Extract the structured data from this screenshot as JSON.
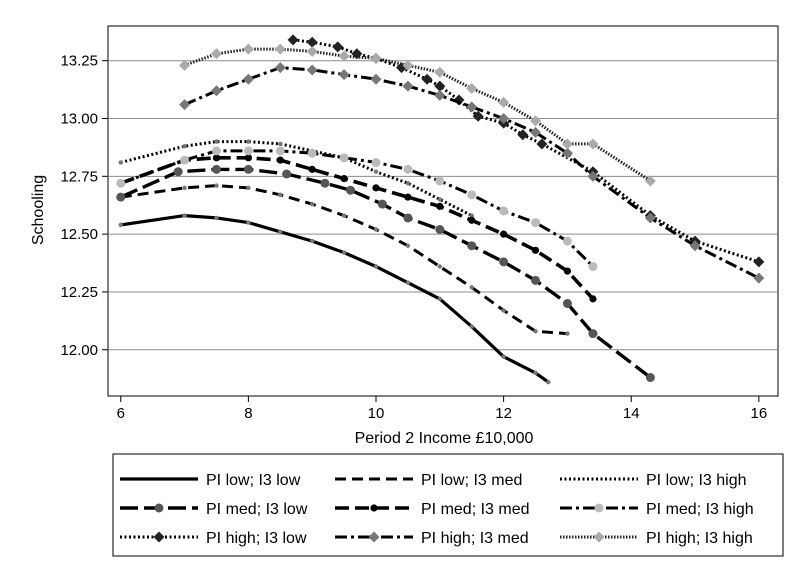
{
  "chart_data": {
    "type": "line",
    "title": "",
    "xlabel": "Period 2 Income £10,000",
    "ylabel": "Schooling",
    "xlim": [
      5.8,
      16.3
    ],
    "ylim": [
      11.8,
      13.4
    ],
    "xticks": [
      6,
      8,
      10,
      12,
      14,
      16
    ],
    "yticks": [
      12.0,
      12.25,
      12.5,
      12.75,
      13.0,
      13.25
    ],
    "ytick_labels": [
      "12.00",
      "12.25",
      "12.50",
      "12.75",
      "13.00",
      "13.25"
    ],
    "grid": "horizontal",
    "legend_placement": "bottom",
    "series": [
      {
        "name": "PI low; I3 low",
        "line": "solid",
        "marker": "none",
        "x": [
          6.0,
          7.0,
          7.5,
          8.0,
          8.5,
          9.0,
          9.5,
          10.0,
          10.5,
          11.0,
          11.5,
          12.0,
          12.5,
          12.7
        ],
        "y": [
          12.54,
          12.58,
          12.57,
          12.55,
          12.51,
          12.47,
          12.42,
          12.36,
          12.29,
          12.22,
          12.1,
          11.97,
          11.9,
          11.86
        ]
      },
      {
        "name": "PI low; I3 med",
        "line": "dash",
        "marker": "none",
        "x": [
          6.0,
          7.0,
          7.5,
          8.0,
          8.5,
          9.0,
          9.5,
          10.0,
          10.5,
          11.0,
          11.5,
          12.0,
          12.5,
          13.0
        ],
        "y": [
          12.66,
          12.7,
          12.71,
          12.7,
          12.67,
          12.63,
          12.58,
          12.52,
          12.45,
          12.36,
          12.27,
          12.17,
          12.08,
          12.07
        ]
      },
      {
        "name": "PI low; I3 high",
        "line": "dot",
        "marker": "none",
        "x": [
          6.0,
          7.0,
          7.5,
          8.0,
          8.5,
          9.0,
          9.5,
          10.0,
          10.5,
          11.0,
          11.5
        ],
        "y": [
          12.81,
          12.88,
          12.9,
          12.9,
          12.89,
          12.86,
          12.83,
          12.77,
          12.72,
          12.65,
          12.58
        ]
      },
      {
        "name": "PI med; I3 low",
        "line": "longdash",
        "marker": "circle",
        "x": [
          6.0,
          6.9,
          7.5,
          8.0,
          8.6,
          9.2,
          9.6,
          10.1,
          10.5,
          11.0,
          11.5,
          12.0,
          12.5,
          13.0,
          13.4,
          14.3
        ],
        "y": [
          12.66,
          12.77,
          12.78,
          12.78,
          12.76,
          12.72,
          12.69,
          12.63,
          12.57,
          12.52,
          12.45,
          12.38,
          12.3,
          12.2,
          12.07,
          11.88
        ]
      },
      {
        "name": "PI med; I3 med",
        "line": "dash-bold",
        "marker": "dot",
        "x": [
          6.0,
          7.0,
          7.5,
          8.0,
          8.5,
          9.0,
          9.5,
          10.0,
          10.5,
          11.0,
          11.5,
          12.0,
          12.5,
          13.0,
          13.4
        ],
        "y": [
          12.72,
          12.82,
          12.83,
          12.83,
          12.82,
          12.78,
          12.74,
          12.7,
          12.66,
          12.62,
          12.56,
          12.5,
          12.43,
          12.34,
          12.22
        ]
      },
      {
        "name": "PI med; I3 high",
        "line": "dashdot",
        "marker": "circle-light",
        "x": [
          6.0,
          7.0,
          7.5,
          8.0,
          8.5,
          9.0,
          9.5,
          10.0,
          10.5,
          11.0,
          11.5,
          12.0,
          12.5,
          13.0,
          13.4
        ],
        "y": [
          12.72,
          12.82,
          12.86,
          12.86,
          12.86,
          12.85,
          12.83,
          12.81,
          12.78,
          12.73,
          12.67,
          12.6,
          12.55,
          12.47,
          12.36
        ]
      },
      {
        "name": "PI high; I3 low",
        "line": "dot",
        "marker": "diamond-dark",
        "x": [
          8.7,
          9.0,
          9.4,
          9.7,
          10.0,
          10.4,
          10.8,
          11.0,
          11.3,
          11.6,
          12.0,
          12.3,
          12.6,
          13.4,
          14.3,
          15.0,
          16.0
        ],
        "y": [
          13.34,
          13.33,
          13.31,
          13.28,
          13.26,
          13.22,
          13.17,
          13.14,
          13.08,
          13.01,
          12.98,
          12.93,
          12.89,
          12.77,
          12.58,
          12.47,
          12.38
        ]
      },
      {
        "name": "PI high; I3 med",
        "line": "dashdot",
        "marker": "diamond-mid",
        "x": [
          7.0,
          7.5,
          8.0,
          8.5,
          9.0,
          9.5,
          10.0,
          10.5,
          11.0,
          11.5,
          12.0,
          12.5,
          13.0,
          13.4,
          14.3,
          15.0,
          16.0
        ],
        "y": [
          13.06,
          13.12,
          13.17,
          13.22,
          13.21,
          13.19,
          13.17,
          13.14,
          13.1,
          13.05,
          13.0,
          12.94,
          12.85,
          12.75,
          12.57,
          12.45,
          12.31
        ]
      },
      {
        "name": "PI high; I3 high",
        "line": "fine-dot",
        "marker": "diamond-light",
        "x": [
          7.0,
          7.5,
          8.0,
          8.5,
          9.0,
          9.5,
          10.0,
          10.5,
          11.0,
          11.5,
          12.0,
          12.5,
          13.0,
          13.4,
          14.3
        ],
        "y": [
          13.23,
          13.28,
          13.3,
          13.3,
          13.29,
          13.27,
          13.26,
          13.23,
          13.2,
          13.13,
          13.07,
          12.99,
          12.89,
          12.89,
          12.73
        ]
      }
    ]
  }
}
